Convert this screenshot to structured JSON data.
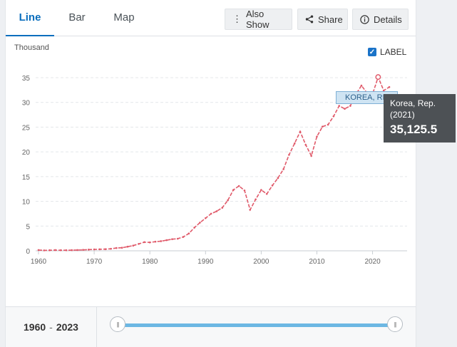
{
  "tabs": [
    {
      "label": "Line",
      "active": true
    },
    {
      "label": "Bar"
    },
    {
      "label": "Map"
    }
  ],
  "toolbar": {
    "also_show": {
      "label": "Also Show",
      "icon": "vertical-dots-icon"
    },
    "share": {
      "label": "Share",
      "icon": "share-icon"
    },
    "details": {
      "label": "Details",
      "icon": "info-icon"
    }
  },
  "label_toggle": {
    "label": "LABEL",
    "checked": true
  },
  "tooltip": {
    "country": "Korea, Rep.",
    "year": "(2021)",
    "value": "35,125.5"
  },
  "series_label": "KOREA, REP.",
  "range": {
    "start": "1960",
    "sep": "-",
    "end": "2023"
  },
  "colors": {
    "accent": "#0a6ebd",
    "series": "#e05a6a",
    "tooltip_bg": "#4d5155",
    "slider": "#6cb7e3"
  },
  "chart_data": {
    "type": "line",
    "ylabel": "Thousand",
    "ylim": [
      0,
      35
    ],
    "yticks": [
      0,
      5,
      10,
      15,
      20,
      25,
      30,
      35
    ],
    "xlim": [
      1960,
      2023
    ],
    "xticks": [
      1960,
      1970,
      1980,
      1990,
      2000,
      2010,
      2020
    ],
    "grid": true,
    "series": [
      {
        "name": "Korea, Rep.",
        "x": [
          1960,
          1961,
          1962,
          1963,
          1964,
          1965,
          1966,
          1967,
          1968,
          1969,
          1970,
          1971,
          1972,
          1973,
          1974,
          1975,
          1976,
          1977,
          1978,
          1979,
          1980,
          1981,
          1982,
          1983,
          1984,
          1985,
          1986,
          1987,
          1988,
          1989,
          1990,
          1991,
          1992,
          1993,
          1994,
          1995,
          1996,
          1997,
          1998,
          1999,
          2000,
          2001,
          2002,
          2003,
          2004,
          2005,
          2006,
          2007,
          2008,
          2009,
          2010,
          2011,
          2012,
          2013,
          2014,
          2015,
          2016,
          2017,
          2018,
          2019,
          2020,
          2021,
          2022,
          2023
        ],
        "y": [
          0.16,
          0.09,
          0.11,
          0.15,
          0.12,
          0.11,
          0.13,
          0.16,
          0.19,
          0.24,
          0.28,
          0.31,
          0.33,
          0.41,
          0.56,
          0.62,
          0.83,
          1.05,
          1.4,
          1.75,
          1.7,
          1.85,
          1.95,
          2.15,
          2.35,
          2.45,
          2.8,
          3.5,
          4.7,
          5.7,
          6.6,
          7.5,
          8.0,
          8.7,
          10.2,
          12.3,
          13.1,
          12.2,
          8.3,
          10.4,
          12.3,
          11.5,
          13.2,
          14.7,
          16.5,
          19.4,
          21.7,
          24.1,
          21.4,
          19.2,
          23.1,
          25.1,
          25.5,
          27.2,
          29.3,
          28.7,
          29.3,
          31.6,
          33.4,
          31.9,
          31.7,
          35.1,
          32.4,
          33.1
        ]
      }
    ],
    "highlight": {
      "x": 2021,
      "y": 35.1255
    }
  }
}
